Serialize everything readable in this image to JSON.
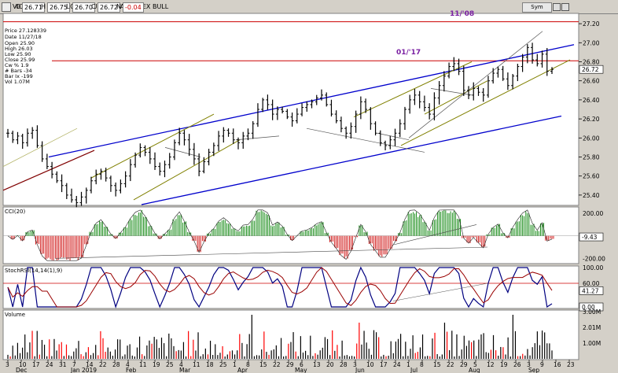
{
  "window": {
    "title": "VICX:US D - INVESCO DB US DOLLAR INDEX BULL",
    "o_label": "O",
    "o_value": "26.71",
    "h_label": "H",
    "h_value": "26.75",
    "l_label": "L",
    "l_value": "26.70",
    "c_label": "C",
    "c_value": "26.72",
    "n_label": "N",
    "n_value": "-0.04",
    "symbol_button": "Sym"
  },
  "info": {
    "price": "Price  27.128339",
    "date": "Date   11/27/18",
    "open": "Open   25.90",
    "high": "High   26.03",
    "low": "Low    25.90",
    "close": "Close  25.99",
    "cw": "Cw %   1.9",
    "bars": "# Bars -34",
    "barix": "Bar Ix -199",
    "vol": "Vol    1.07M"
  },
  "annotations": {
    "top_line": "11/'08",
    "mid_line": "01/'17"
  },
  "colors": {
    "background": "#ffffff",
    "panel_bg": "#d4d0c8",
    "price_bar": "#000000",
    "channel_blue": "#0000cc",
    "channel_olive": "#808000",
    "resistance_red": "#cc0000",
    "trend_dark_red": "#800000",
    "cci_green": "#008000",
    "cci_red": "#cc0000",
    "stoch_blue": "#000080",
    "stoch_red": "#990000",
    "volume_black": "#000000",
    "volume_red": "#ff0000"
  },
  "chart_data": [
    {
      "type": "line",
      "name": "price",
      "ylim": [
        25.3,
        27.3
      ],
      "yticks": [
        "27.20",
        "27.00",
        "26.80",
        "26.60",
        "26.40",
        "26.20",
        "26.00",
        "25.80",
        "25.60",
        "25.40"
      ],
      "xlabels": [
        "3",
        "10",
        "17",
        "24",
        "31",
        "7",
        "14",
        "22",
        "28",
        "4",
        "11",
        "19",
        "25",
        "4",
        "11",
        "18",
        "25",
        "1",
        "8",
        "15",
        "22",
        "29",
        "6",
        "13",
        "20",
        "28",
        "3",
        "10",
        "17",
        "24",
        "1",
        "8",
        "15",
        "22",
        "29",
        "5",
        "12",
        "19",
        "26",
        "3",
        "9",
        "16",
        "23"
      ],
      "month_labels": [
        "Dec",
        "Jan 2019",
        "Feb",
        "Mar",
        "Apr",
        "May",
        "Jun",
        "Jul",
        "Aug",
        "Sep"
      ],
      "last_label": "26.72",
      "horizontal_lines": [
        27.22,
        26.81
      ],
      "closes": [
        26.05,
        25.98,
        26.02,
        25.95,
        26.05,
        26.08,
        25.92,
        25.78,
        25.7,
        25.62,
        25.55,
        25.5,
        25.4,
        25.35,
        25.32,
        25.38,
        25.45,
        25.55,
        25.62,
        25.65,
        25.58,
        25.5,
        25.45,
        25.52,
        25.6,
        25.72,
        25.82,
        25.9,
        25.85,
        25.78,
        25.7,
        25.65,
        25.72,
        25.8,
        25.95,
        26.05,
        25.98,
        25.88,
        25.78,
        25.65,
        25.75,
        25.85,
        25.92,
        26.02,
        26.08,
        26.05,
        25.98,
        25.95,
        26.02,
        26.05,
        26.15,
        26.3,
        26.4,
        26.35,
        26.25,
        26.3,
        26.28,
        26.22,
        26.18,
        26.25,
        26.32,
        26.35,
        26.38,
        26.42,
        26.45,
        26.35,
        26.25,
        26.18,
        26.1,
        26.05,
        26.12,
        26.25,
        26.38,
        26.3,
        26.15,
        26.05,
        25.95,
        25.92,
        25.98,
        26.05,
        26.15,
        26.3,
        26.4,
        26.45,
        26.38,
        26.32,
        26.25,
        26.42,
        26.55,
        26.65,
        26.75,
        26.78,
        26.7,
        26.5,
        26.45,
        26.52,
        26.48,
        26.45,
        26.6,
        26.68,
        26.72,
        26.62,
        26.55,
        26.65,
        26.75,
        26.85,
        26.95,
        26.82,
        26.78,
        26.88,
        26.7,
        26.72
      ]
    },
    {
      "type": "bar",
      "name": "CCI(20)",
      "ylim": [
        -240,
        250
      ],
      "yticks": [
        "200.00",
        "-200.00"
      ],
      "last_label": "-9.43"
    },
    {
      "type": "line",
      "name": "StochRSI(14,14(1),9)",
      "ylim": [
        0,
        100
      ],
      "yticks": [
        "100.00",
        "60.00"
      ],
      "last_labels": [
        "41.27",
        "0.00"
      ]
    },
    {
      "type": "bar",
      "name": "Volume",
      "ylim": [
        0,
        3000000
      ],
      "yticks": [
        "3.00M",
        "2.01M",
        "1.00M"
      ]
    }
  ]
}
